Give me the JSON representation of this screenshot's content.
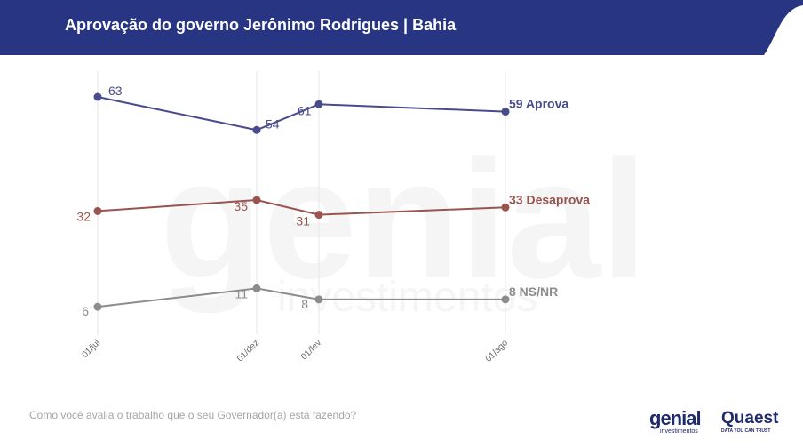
{
  "header": {
    "title": "Aprovação do governo Jerônimo Rodrigues | Bahia"
  },
  "footer": {
    "question": "Como você avalia o trabalho que o seu Governador(a) está fazendo?",
    "logo_genial_word": "genial",
    "logo_genial_sub": "investimentos",
    "logo_quaest_word": "Quaest",
    "logo_quaest_sub": "DATA YOU CAN TRUST"
  },
  "watermark": {
    "word": "genial",
    "sub": "investimentos"
  },
  "colors": {
    "header": "#283583",
    "aprova": "#4a4b8c",
    "desaprova": "#9a544f",
    "nsnr": "#8c8c8c"
  },
  "chart_data": {
    "type": "line",
    "categories": [
      "01/jul",
      "01/dez",
      "01/fev",
      "01/ago"
    ],
    "ylim": [
      0,
      70
    ],
    "grid": "vertical",
    "series": [
      {
        "name": "Aprova",
        "color": "#4a4b8c",
        "values": [
          63,
          54,
          61,
          59
        ]
      },
      {
        "name": "Desaprova",
        "color": "#9a544f",
        "values": [
          32,
          35,
          31,
          33
        ]
      },
      {
        "name": "NS/NR",
        "color": "#8c8c8c",
        "values": [
          6,
          11,
          8,
          8
        ]
      }
    ]
  }
}
